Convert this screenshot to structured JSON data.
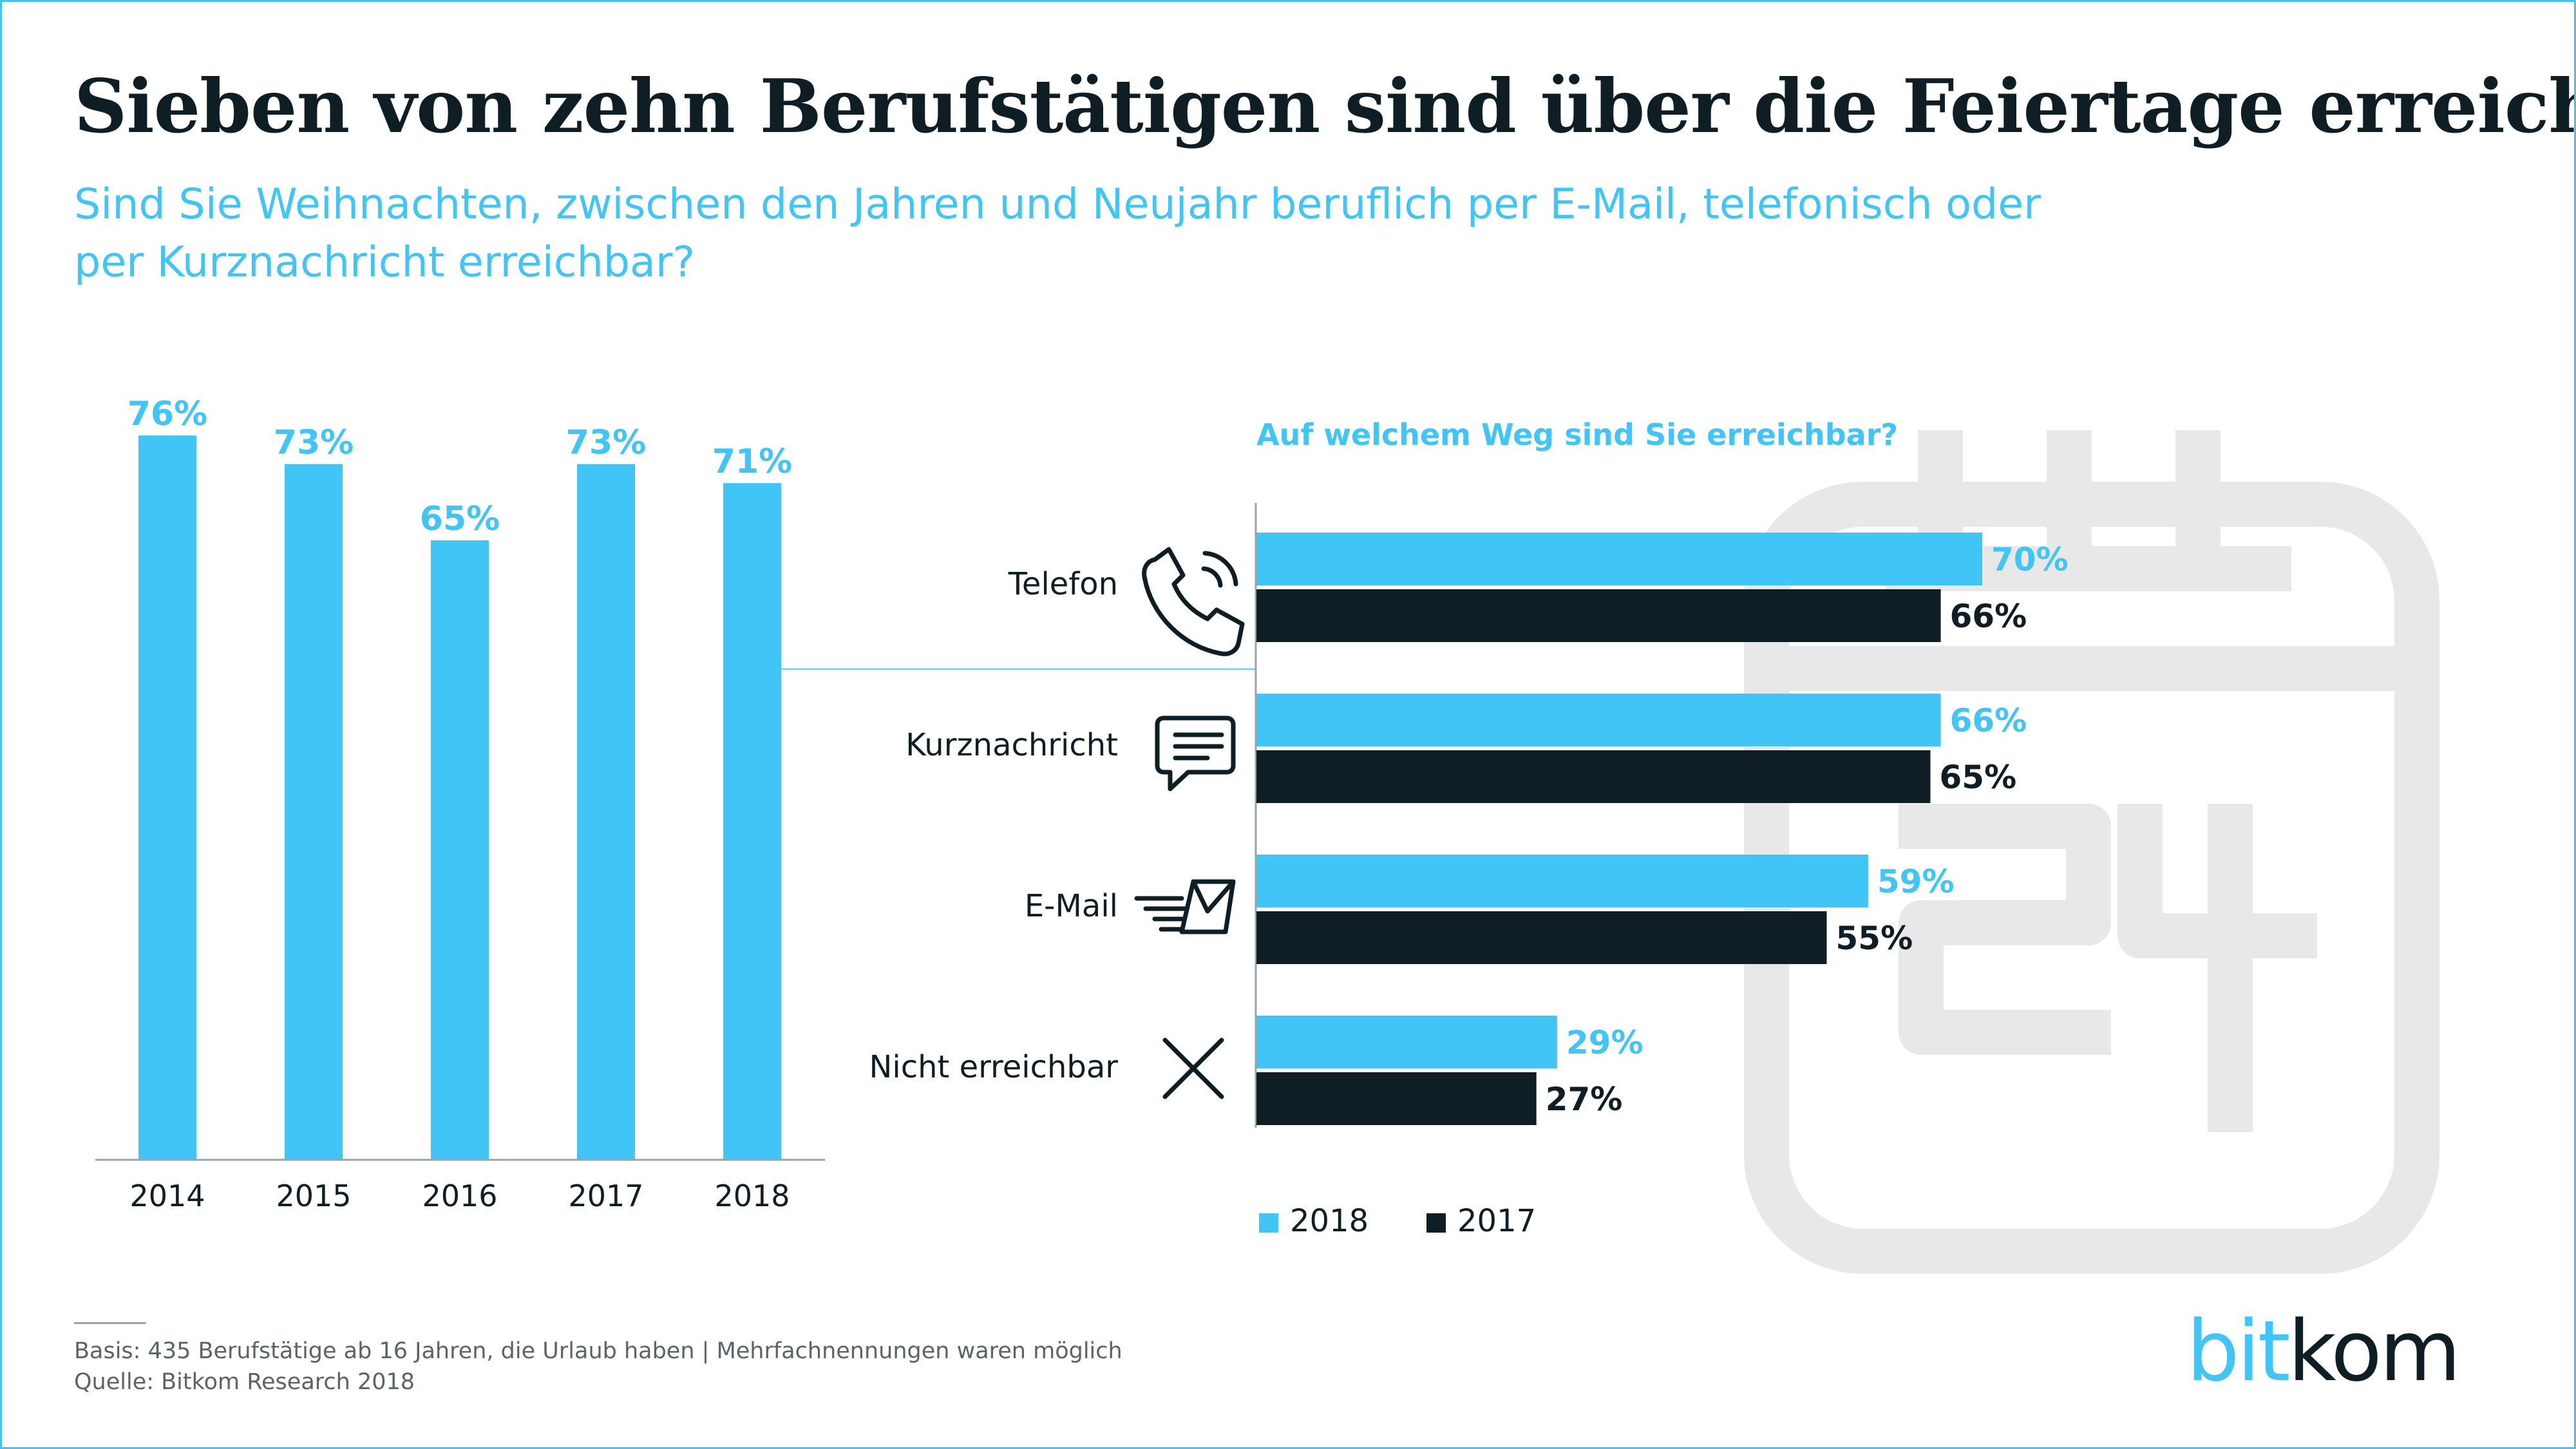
{
  "title": "Sieben von zehn Berufstätigen sind über die Feiertage erreichbar",
  "subtitle_line1": "Sind Sie Weihnachten, zwischen den Jahren und Neujahr beruflich per E-Mail, telefonisch oder",
  "subtitle_line2": "per Kurznachricht erreichbar?",
  "colors": {
    "accent": "#41c5f7",
    "dark": "#0f1e24",
    "watermark": "#e8e8e8"
  },
  "chart_data": [
    {
      "type": "bar",
      "categories": [
        "2014",
        "2015",
        "2016",
        "2017",
        "2018"
      ],
      "values": [
        76,
        73,
        65,
        73,
        71
      ],
      "value_labels": [
        "76%",
        "73%",
        "65%",
        "73%",
        "71%"
      ],
      "ylim": [
        0,
        100
      ]
    },
    {
      "type": "bar",
      "orientation": "horizontal",
      "title": "Auf welchem Weg sind Sie erreichbar?",
      "categories": [
        "Telefon",
        "Kurznachricht",
        "E-Mail",
        "Nicht erreichbar"
      ],
      "category_icons": [
        "phone-icon",
        "chat-bubble-icon",
        "envelope-icon",
        "cross-icon"
      ],
      "series": [
        {
          "name": "2018",
          "color": "#41c5f7",
          "values": [
            70,
            66,
            59,
            29
          ],
          "labels": [
            "70%",
            "66%",
            "59%",
            "29%"
          ]
        },
        {
          "name": "2017",
          "color": "#0f1e24",
          "values": [
            66,
            65,
            55,
            27
          ],
          "labels": [
            "66%",
            "65%",
            "55%",
            "27%"
          ]
        }
      ],
      "xlim": [
        0,
        100
      ],
      "legend": "bottom-left"
    }
  ],
  "legend": {
    "label_2018": "2018",
    "label_2017": "2017"
  },
  "footnote": {
    "basis": "Basis: 435 Berufstätige ab 16 Jahren, die Urlaub haben | Mehrfachnennungen waren möglich",
    "source": "Quelle: Bitkom Research 2018"
  },
  "logo": {
    "part1": "bit",
    "part2": "kom"
  }
}
